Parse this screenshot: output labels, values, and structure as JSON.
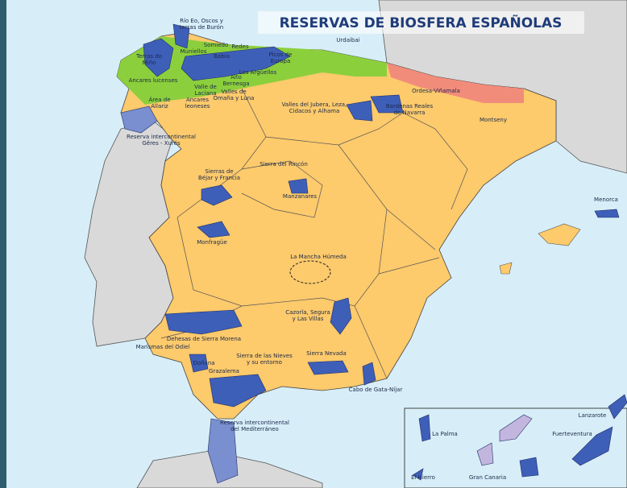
{
  "header": {
    "title": "RESERVAS DE BIOSFERA ESPAÑOLAS"
  },
  "labels": [
    [
      "Río Eo, Oscos y",
      "terras de Burón"
    ],
    [
      "Urdaibai"
    ],
    [
      "Terras do",
      "Miño"
    ],
    [
      "Muniellos"
    ],
    [
      "Somiedo"
    ],
    [
      "Redes"
    ],
    [
      "Babia"
    ],
    [
      "Picos de",
      "Europa"
    ],
    [
      "Ancares lucenses"
    ],
    [
      "Alto",
      "Bernesga"
    ],
    [
      "Los Argüellos"
    ],
    [
      "Valle de",
      "Laciana"
    ],
    [
      "Valles de",
      "Omaña y Luna"
    ],
    [
      "Ancares",
      "leoneses"
    ],
    [
      "Área de",
      "Allariz"
    ],
    [
      "Valles del Jubera, Leza,",
      "Cidacos y Alhama"
    ],
    [
      "Bardenas Reales",
      "de Navarra"
    ],
    [
      "Ordesa-Viñamala"
    ],
    [
      "Montseny"
    ],
    [
      "Reserva intercontinental",
      "Gêres - Xurés"
    ],
    [
      "Sierras de",
      "Béjar y Francia"
    ],
    [
      "Sierra del Rincón"
    ],
    [
      "Manzanares"
    ],
    [
      "Menorca"
    ],
    [
      "Monfragüe"
    ],
    [
      "La Mancha Húmeda"
    ],
    [
      "Cazorla, Segura",
      "y Las Villas"
    ],
    [
      "Dehesas de Sierra Morena"
    ],
    [
      "Marismas del Odiel"
    ],
    [
      "Sierra Nevada"
    ],
    [
      "Sierra de las Nieves",
      "y su entorno"
    ],
    [
      "Doñana"
    ],
    [
      "Grazalema"
    ],
    [
      "Cabo de Gata-Níjar"
    ],
    [
      "Reserva intercontinental",
      "del Mediterráneo"
    ],
    [
      "Lanzarote"
    ],
    [
      "La Palma"
    ],
    [
      "Fuerteventura"
    ],
    [
      "El Hierro"
    ],
    [
      "Gran Canaria"
    ]
  ]
}
